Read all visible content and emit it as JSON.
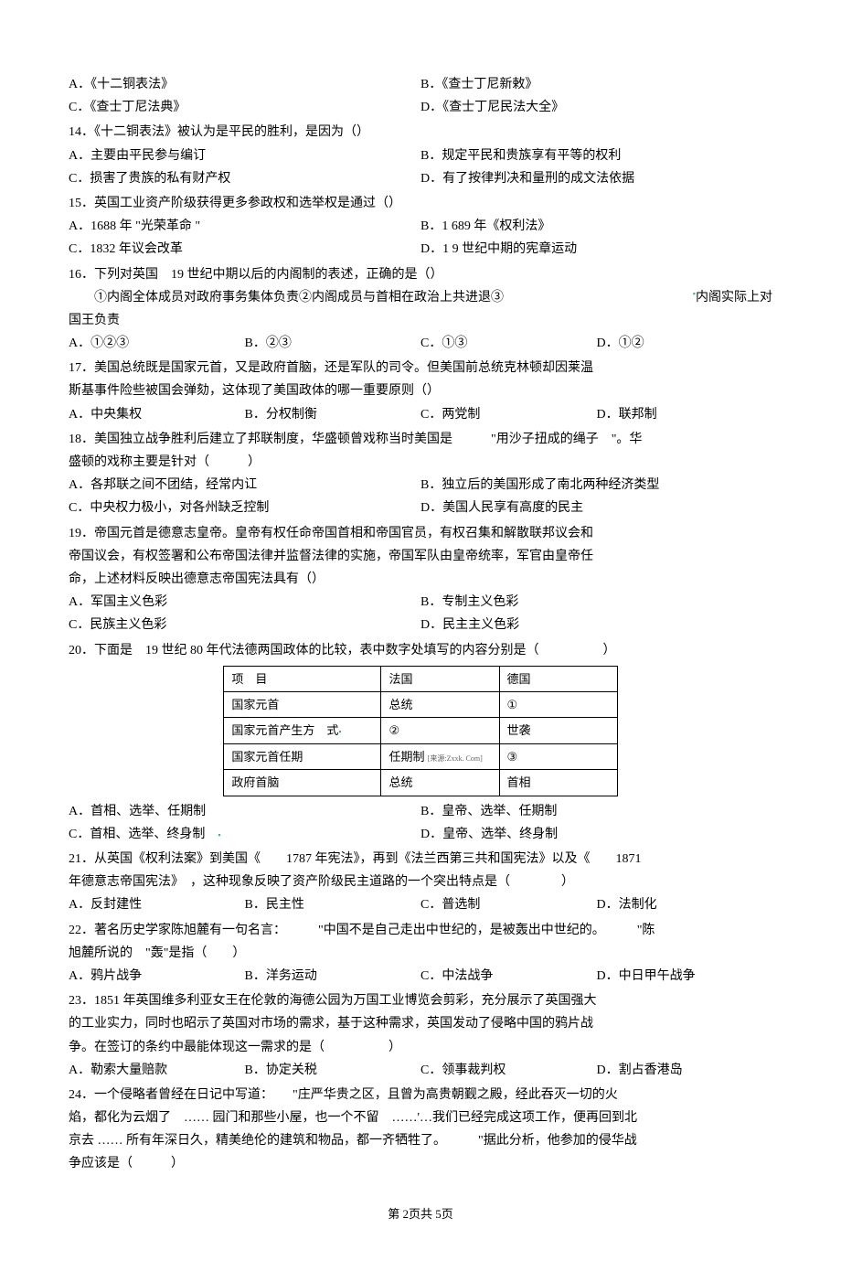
{
  "q13": {
    "optA": "A．《十二铜表法》",
    "optB": "B．《查士丁尼新敕》",
    "optC": "C．《查士丁尼法典》",
    "optD": "D．《查士丁尼民法大全》"
  },
  "q14": {
    "stem": "14．《十二铜表法》被认为是平民的胜利，是因为（）",
    "optA": "A．主要由平民参与编订",
    "optB": "B．规定平民和贵族享有平等的权利",
    "optC": "C．损害了贵族的私有财产权",
    "optD": "D．有了按律判决和量刑的成文法依据"
  },
  "q15": {
    "stem": "15．英国工业资产阶级获得更多参政权和选举权是通过（）",
    "optA": "A．1688 年 \"光荣革命  \"",
    "optB": "B．1 689 年《权利法》",
    "optC": "C．1832 年议会改革",
    "optD": "D．1 9 世纪中期的宪章运动"
  },
  "q16": {
    "stem": "16．下列对英国　19 世纪中期以后的内阁制的表述，正确的是（）",
    "sub": "①内阁全体成员对政府事务集体负责②内阁成员与首相在政治上共进退③",
    "sub2": "内阁实际上对",
    "sub3": "国王负责",
    "optA": "A．①②③",
    "optB": "B．②③",
    "optC": "C．①③",
    "optD": "D．①②"
  },
  "q17": {
    "stem1": "17．美国总统既是国家元首，又是政府首脑，还是军队的司令。但美国前总统克林顿却因莱温",
    "stem2": "斯基事件险些被国会弹劾，这体现了美国政体的哪一重要原则（）",
    "optA": "A．中央集权",
    "optB": "B．分权制衡",
    "optC": "C．两党制",
    "optD": "D．联邦制"
  },
  "q18": {
    "stem1": "18．美国独立战争胜利后建立了邦联制度，华盛顿曾戏称当时美国是　　　\"用沙子扭成的绳子　\"。华",
    "stem2": "盛顿的戏称主要是针对（　　　）",
    "optA": "A．各邦联之间不团结，经常内讧",
    "optB": "B．独立后的美国形成了南北两种经济类型",
    "optC": "C．中央权力极小，对各州缺乏控制",
    "optD": "D．美国人民享有高度的民主"
  },
  "q19": {
    "stem1": "19．帝国元首是德意志皇帝。皇帝有权任命帝国首相和帝国官员，有权召集和解散联邦议会和",
    "stem2": "帝国议会，有权签署和公布帝国法律并监督法律的实施，帝国军队由皇帝统率，军官由皇帝任",
    "stem3": "命，上述材料反映出德意志帝国宪法具有（）",
    "optA": "A．军国主义色彩",
    "optB": "B．专制主义色彩",
    "optC": "C．民族主义色彩",
    "optD": "D．民主主义色彩"
  },
  "q20": {
    "stem": "20．下面是　19 世纪 80 年代法德两国政体的比较，表中数字处填写的内容分别是（　　　　　）",
    "table": {
      "header": [
        "项　目",
        "法国",
        "德国"
      ],
      "rows": [
        [
          "国家元首",
          "总统",
          "①"
        ],
        [
          "国家元首产生方　式",
          "②",
          "世袭"
        ],
        [
          "国家元首任期",
          "任期制",
          "③"
        ],
        [
          "政府首脑",
          "总统",
          "首相"
        ]
      ],
      "tiny_note": "[来源:Zxxk. Com]"
    },
    "optA": "A．首相、选举、任期制",
    "optB": "B．皇帝、选举、任期制",
    "optC": "C．首相、选举、终身制",
    "optD": "D．皇帝、选举、终身制"
  },
  "q21": {
    "stem1": "21．从英国《权利法案》到美国《　　1787 年宪法》，再到《法兰西第三共和国宪法》以及《　　1871",
    "stem2": "年德意志帝国宪法》　，这种现象反映了资产阶级民主道路的一个突出特点是（　　　　）",
    "optA": "A．反封建性",
    "optB": "B．民主性",
    "optC": "C．普选制",
    "optD": "D．法制化"
  },
  "q22": {
    "stem1": "22．著名历史学家陈旭麓有一句名言：　　　\"中国不是自己走出中世纪的，是被轰出中世纪的。　　　\"陈",
    "stem2": "旭麓所说的　\"轰\"是指（　　）",
    "optA": "A．鸦片战争",
    "optB": "B．洋务运动",
    "optC": "C．中法战争",
    "optD": "D．中日甲午战争"
  },
  "q23": {
    "stem1": "23．1851 年英国维多利亚女王在伦敦的海德公园为万国工业博览会剪彩，充分展示了英国强大",
    "stem2": "的工业实力，同时也昭示了英国对市场的需求，基于这种需求，英国发动了侵略中国的鸦片战",
    "stem3": "争。在签订的条约中最能体现这一需求的是（　　　　　）",
    "optA": "A．勒索大量赔款",
    "optB": "B．协定关税",
    "optC": "C．领事裁判权",
    "optD": "D．割占香港岛"
  },
  "q24": {
    "stem1": "24．一个侵略者曾经在日记中写道：　　\"庄严华贵之区，且曾为高贵朝觐之殿，经此吞灭一切的火",
    "stem2": "焰，都化为云烟了　…… 园门和那些小屋，也一个不留　……'…我们已经完成这项工作，便再回到北",
    "stem3": "京去 …… 所有年深日久，精美绝伦的建筑和物品，都一齐牺牲了。　　　\"据此分析，他参加的侵华战",
    "stem4": "争应该是（　　　）"
  },
  "footer": "第 2页共 5页"
}
